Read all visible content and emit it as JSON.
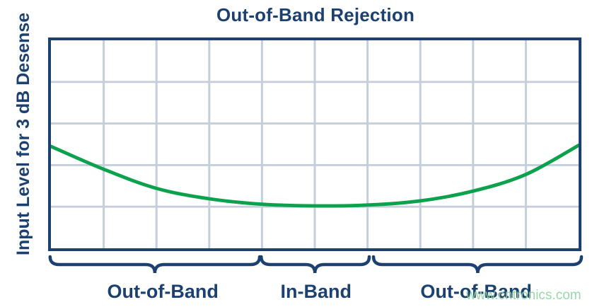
{
  "colors": {
    "navy": "#1c4170",
    "curve_green": "#0ca24d",
    "grid_line": "#c5cedb",
    "watermark_green": "#8fd3a0",
    "background": "#ffffff"
  },
  "watermark_text": "www.cntronics.com",
  "chart_data": {
    "type": "line",
    "title": "Out-of-Band Rejection",
    "ylabel": "Input Level for 3 dB Desense",
    "xlabel": "",
    "axes_note": "qualitative plot - no numeric tick labels on either axis",
    "grid": {
      "on": true,
      "columns": 10,
      "rows": 5
    },
    "legend": "none",
    "series": [
      {
        "name": "Input level for 3 dB desense",
        "color": "#0ca24d",
        "points_pct": [
          [
            0,
            51.0
          ],
          [
            10,
            62.0
          ],
          [
            20,
            71.2
          ],
          [
            30,
            76.2
          ],
          [
            40,
            78.8
          ],
          [
            50,
            79.6
          ],
          [
            60,
            79.2
          ],
          [
            70,
            77.2
          ],
          [
            80,
            72.5
          ],
          [
            90,
            64.5
          ],
          [
            100,
            50.5
          ]
        ],
        "points_note": "x = percent of frequency axis, y = percent down from top of plot area; U-shaped curve, minimum at band center"
      }
    ],
    "bands": [
      {
        "label": "Out-of-Band",
        "start_pct": 0.1,
        "end_pct": 39.5,
        "tip_pct": 19.8,
        "label_center_pct": 21.3
      },
      {
        "label": "In-Band",
        "start_pct": 39.8,
        "end_pct": 60.1,
        "tip_pct": 49.9,
        "label_center_pct": 50.1
      },
      {
        "label": "Out-of-Band",
        "start_pct": 60.9,
        "end_pct": 100.0,
        "tip_pct": 80.5,
        "label_center_pct": 80.2
      }
    ]
  }
}
